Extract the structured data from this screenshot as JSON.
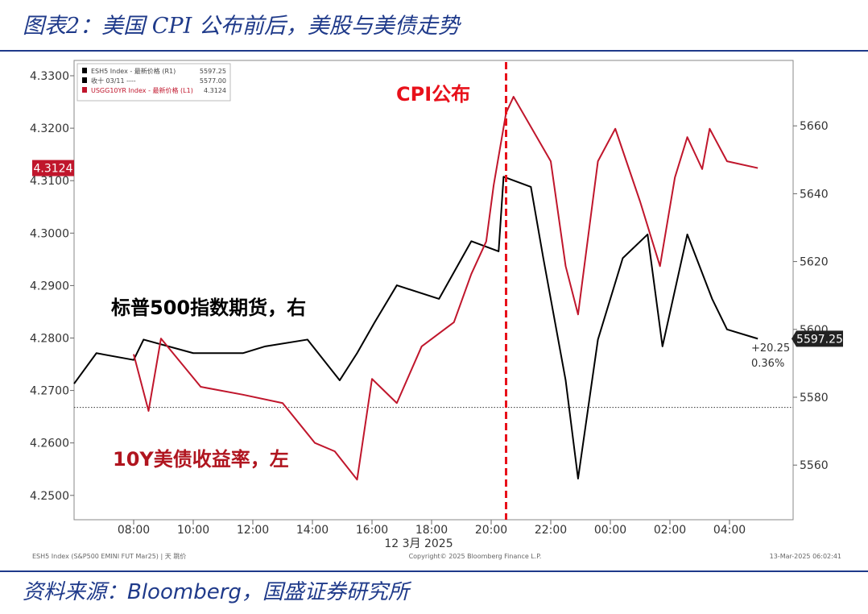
{
  "title": "图表2：美国 CPI 公布前后，美股与美债走势",
  "source": "资料来源：Bloomberg，国盛证券研究所",
  "chart_data": {
    "type": "line",
    "x_axis": {
      "ticks": [
        "08:00",
        "10:00",
        "12:00",
        "14:00",
        "16:00",
        "18:00",
        "20:00",
        "22:00",
        "00:00",
        "02:00",
        "04:00"
      ],
      "date_label": "12 3月 2025"
    },
    "left_axis": {
      "ticks": [
        "4.2500",
        "4.2600",
        "4.2700",
        "4.2800",
        "4.2900",
        "4.3000",
        "4.3100",
        "4.3200",
        "4.3300"
      ],
      "range": [
        4.247,
        4.333
      ]
    },
    "right_axis": {
      "ticks": [
        "5560",
        "5580",
        "5600",
        "5620",
        "5640",
        "5660"
      ],
      "range": [
        5544,
        5680
      ]
    },
    "legend": {
      "placement": "top-left",
      "entries": [
        {
          "label": "ESH5 Index - 最新价格 (R1)",
          "value": "5597.25",
          "color": "#000000"
        },
        {
          "label": "收十 03/11 ----",
          "value": "5577.00",
          "color": "#000000"
        },
        {
          "label": "USGG10YR Index - 最新价格 (L1)",
          "value": "4.3124",
          "color": "#c0162c"
        }
      ]
    },
    "annotations": {
      "cpi": "CPI公布",
      "cpi_time": "20:30",
      "es_label": "标普500指数期货，右",
      "yield_label": "10Y美债收益率，左",
      "last_es": "5597.25",
      "last_yield": "4.3124",
      "change": "+20.25",
      "change_pct": "0.36%",
      "prev_close": 5577
    },
    "footer": {
      "left": "ESH5 Index (S&P500 EMINI FUT Mar25) | 天 跳价",
      "center": "Copyright© 2025 Bloomberg Finance L.P.",
      "right": "13-Mar-2025 06:02:41"
    },
    "series": [
      {
        "name": "ESH5 Index",
        "axis": "right",
        "color": "#000000",
        "points": [
          [
            "06:00",
            5584
          ],
          [
            "06:45",
            5593
          ],
          [
            "08:00",
            5591
          ],
          [
            "08:20",
            5597
          ],
          [
            "10:00",
            5593
          ],
          [
            "11:40",
            5593
          ],
          [
            "12:25",
            5595
          ],
          [
            "13:50",
            5597
          ],
          [
            "14:55",
            5585
          ],
          [
            "15:30",
            5593
          ],
          [
            "16:05",
            5602
          ],
          [
            "16:50",
            5613
          ],
          [
            "18:15",
            5609
          ],
          [
            "19:20",
            5626
          ],
          [
            "20:15",
            5623
          ],
          [
            "20:25",
            5645
          ],
          [
            "21:20",
            5642
          ],
          [
            "21:45",
            5621
          ],
          [
            "22:30",
            5585
          ],
          [
            "22:55",
            5556
          ],
          [
            "23:35",
            5597
          ],
          [
            "00:25",
            5621
          ],
          [
            "01:15",
            5628
          ],
          [
            "01:45",
            5595
          ],
          [
            "02:35",
            5628
          ],
          [
            "03:25",
            5609
          ],
          [
            "03:55",
            5600
          ],
          [
            "04:57",
            5597.25
          ]
        ]
      },
      {
        "name": "USGG10YR Index",
        "axis": "left",
        "color": "#c0162c",
        "points": [
          [
            "08:00",
            4.2769
          ],
          [
            "08:30",
            4.2661
          ],
          [
            "08:55",
            4.2799
          ],
          [
            "10:15",
            4.2707
          ],
          [
            "11:40",
            4.2692
          ],
          [
            "13:00",
            4.2676
          ],
          [
            "14:05",
            4.26
          ],
          [
            "14:45",
            4.2584
          ],
          [
            "15:30",
            4.253
          ],
          [
            "16:00",
            4.2722
          ],
          [
            "16:50",
            4.2676
          ],
          [
            "17:40",
            4.2784
          ],
          [
            "18:45",
            4.283
          ],
          [
            "19:20",
            4.2922
          ],
          [
            "19:50",
            4.2984
          ],
          [
            "20:05",
            4.3091
          ],
          [
            "20:30",
            4.3229
          ],
          [
            "20:45",
            4.326
          ],
          [
            "22:00",
            4.3137
          ],
          [
            "22:30",
            4.2937
          ],
          [
            "22:55",
            4.2845
          ],
          [
            "23:35",
            4.3137
          ],
          [
            "00:10",
            4.3199
          ],
          [
            "01:00",
            4.306
          ],
          [
            "01:40",
            4.2937
          ],
          [
            "02:10",
            4.3106
          ],
          [
            "02:35",
            4.3183
          ],
          [
            "03:05",
            4.3122
          ],
          [
            "03:20",
            4.3199
          ],
          [
            "03:55",
            4.3137
          ],
          [
            "04:57",
            4.3124
          ]
        ]
      }
    ]
  }
}
